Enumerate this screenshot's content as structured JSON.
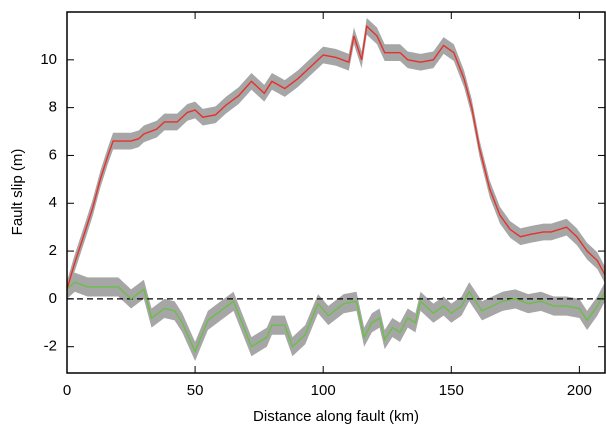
{
  "chart_data": {
    "type": "line",
    "xlabel": "Distance along fault (km)",
    "ylabel": "Fault slip (m)",
    "xlim": [
      0,
      210
    ],
    "ylim": [
      -3.1,
      12
    ],
    "xticks": [
      0,
      50,
      100,
      150,
      200
    ],
    "yticks": [
      -2,
      0,
      2,
      4,
      6,
      8,
      10
    ],
    "zero_line": 0,
    "band_color": "#a6a6a6",
    "series": [
      {
        "color": "#e8302a",
        "uncertainty": 0.35,
        "x": [
          0,
          3,
          7,
          10,
          13,
          16,
          18,
          20,
          25,
          28,
          30,
          35,
          38,
          43,
          47,
          50,
          53,
          58,
          62,
          67,
          72,
          77,
          80,
          85,
          90,
          95,
          100,
          105,
          110,
          112,
          115,
          117,
          121,
          124,
          127,
          130,
          133,
          138,
          143,
          147,
          151,
          155,
          158,
          161,
          165,
          169,
          173,
          177,
          181,
          186,
          189,
          195,
          199,
          203,
          207,
          210
        ],
        "values": [
          0.4,
          1.5,
          2.8,
          3.8,
          5.0,
          6.0,
          6.6,
          6.6,
          6.6,
          6.7,
          6.9,
          7.1,
          7.4,
          7.4,
          7.8,
          7.9,
          7.6,
          7.7,
          8.1,
          8.5,
          9.1,
          8.6,
          9.1,
          8.8,
          9.2,
          9.7,
          10.2,
          10.1,
          9.9,
          11.0,
          10.0,
          11.4,
          11.0,
          10.3,
          10.3,
          10.3,
          10.0,
          9.9,
          10.0,
          10.6,
          10.3,
          9.2,
          8.0,
          6.3,
          4.6,
          3.5,
          2.9,
          2.6,
          2.7,
          2.8,
          2.8,
          3.0,
          2.6,
          2.0,
          1.6,
          1.0
        ]
      },
      {
        "color": "#6abf45",
        "uncertainty": 0.4,
        "x": [
          0,
          3,
          8,
          15,
          20,
          25,
          30,
          33,
          38,
          42,
          45,
          50,
          55,
          60,
          65,
          72,
          78,
          80,
          85,
          88,
          93,
          98,
          102,
          108,
          113,
          116,
          119,
          122,
          124,
          127,
          130,
          133,
          136,
          138,
          143,
          147,
          150,
          154,
          157,
          162,
          170,
          175,
          180,
          185,
          190,
          195,
          200,
          203,
          207,
          210
        ],
        "values": [
          0.4,
          0.7,
          0.5,
          0.5,
          0.5,
          0.0,
          0.4,
          -0.8,
          -0.4,
          -0.5,
          -1.0,
          -2.2,
          -0.9,
          -0.5,
          -0.1,
          -2.0,
          -1.6,
          -1.1,
          -1.1,
          -2.0,
          -1.5,
          -0.2,
          -0.7,
          -0.2,
          -0.1,
          -1.6,
          -1.0,
          -0.8,
          -1.7,
          -1.2,
          -1.4,
          -0.8,
          -1.0,
          -0.1,
          -0.6,
          -0.3,
          -0.6,
          -0.3,
          0.3,
          -0.5,
          -0.1,
          0.0,
          -0.2,
          -0.1,
          -0.3,
          -0.3,
          -0.4,
          -0.9,
          -0.3,
          0.3
        ]
      }
    ]
  }
}
